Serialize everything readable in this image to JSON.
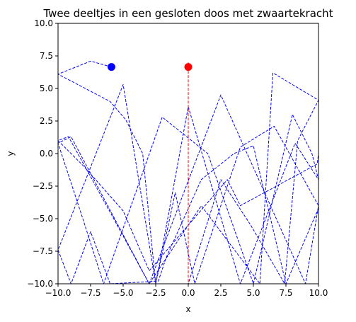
{
  "chart_data": {
    "type": "line",
    "title": "Twee deeltjes in een gesloten doos met zwaartekracht",
    "xlabel": "x",
    "ylabel": "y",
    "xlim": [
      -10,
      10
    ],
    "ylim": [
      -10,
      10
    ],
    "x_ticks": [
      -10,
      -7.5,
      -5,
      -2.5,
      0,
      2.5,
      5,
      7.5,
      10
    ],
    "y_ticks": [
      -10,
      -7.5,
      -5,
      -2.5,
      0,
      2.5,
      5,
      7.5,
      10
    ],
    "x_tick_labels": [
      "−10.0",
      "−7.5",
      "−5.0",
      "−2.5",
      "0.0",
      "2.5",
      "5.0",
      "7.5",
      "10.0"
    ],
    "y_tick_labels": [
      "−10.0",
      "−7.5",
      "−5.0",
      "−2.5",
      "0.0",
      "2.5",
      "5.0",
      "7.5",
      "10.0"
    ],
    "grid": false,
    "series": [
      {
        "color": "#0000ff",
        "style": "dashed",
        "marker_position": [
          -5.9,
          6.65
        ],
        "points": [
          [
            -5.9,
            6.65
          ],
          [
            -7.5,
            7.1
          ],
          [
            -10.0,
            6.1
          ],
          [
            -6.0,
            4.0
          ],
          [
            -4.8,
            2.6
          ],
          [
            -3.5,
            0.0
          ],
          [
            -2.5,
            -10.0
          ],
          [
            0.0,
            3.6
          ],
          [
            4.0,
            -10.0
          ],
          [
            8.2,
            0.8
          ],
          [
            10.0,
            -2.0
          ],
          [
            9.5,
            0.0
          ],
          [
            8.0,
            3.0
          ],
          [
            5.0,
            -10.0
          ],
          [
            1.5,
            0.0
          ],
          [
            -2.0,
            2.8
          ],
          [
            -6.5,
            -10.0
          ],
          [
            -8.1,
            -5.0
          ],
          [
            -10.0,
            0.8
          ],
          [
            -9.0,
            1.3
          ],
          [
            -3.0,
            -10.0
          ],
          [
            2.5,
            4.5
          ],
          [
            9.0,
            -10.0
          ],
          [
            10.0,
            -4.0
          ],
          [
            6.6,
            2.1
          ],
          [
            4.0,
            0.5
          ],
          [
            0.5,
            -10.0
          ],
          [
            -1.0,
            -3.0
          ],
          [
            -2.5,
            -10.0
          ],
          [
            -5.0,
            5.3
          ],
          [
            -10.0,
            -7.4
          ],
          [
            -9.0,
            -10.0
          ],
          [
            -7.5,
            -6.0
          ],
          [
            -6.0,
            -10.0
          ],
          [
            -2.3,
            -9.8
          ],
          [
            -1.7,
            -8.0
          ],
          [
            1.0,
            -2.0
          ],
          [
            3.5,
            0.0
          ],
          [
            5.0,
            0.6
          ],
          [
            7.5,
            -10.0
          ],
          [
            10.0,
            -4.2
          ],
          [
            10.0,
            0.0
          ],
          [
            9.9,
            -0.8
          ],
          [
            4.0,
            -4.0
          ],
          [
            3.0,
            -2.0
          ],
          [
            -3.0,
            -9.0
          ],
          [
            -5.0,
            -4.4
          ],
          [
            -8.0,
            -1.0
          ],
          [
            -10.0,
            1.0
          ],
          [
            -9.2,
            1.3
          ],
          [
            -6.0,
            -4.5
          ],
          [
            -3.0,
            -10.0
          ],
          [
            1.0,
            -4.0
          ],
          [
            5.5,
            -10.0
          ],
          [
            6.5,
            6.2
          ],
          [
            10.0,
            4.1
          ],
          [
            8.4,
            1.0
          ],
          [
            7.4,
            -10.0
          ],
          [
            4.8,
            -5.5
          ],
          [
            2.5,
            -2.0
          ],
          [
            0.0,
            -10.0
          ]
        ]
      },
      {
        "color": "#ff0000",
        "style": "dashed",
        "marker_position": [
          0,
          6.65
        ],
        "points": [
          [
            0,
            7.0
          ],
          [
            0,
            -10.0
          ]
        ]
      }
    ]
  }
}
